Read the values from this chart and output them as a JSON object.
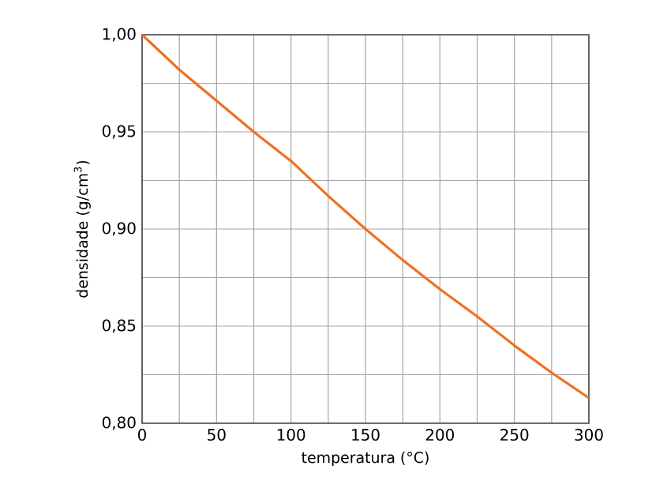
{
  "chart_data": {
    "type": "line",
    "xlabel": "temperatura (°C)",
    "ylabel": "densidade (g/cm$^{3}$)",
    "x": [
      0,
      25,
      50,
      75,
      100,
      125,
      150,
      175,
      200,
      225,
      250,
      275,
      300
    ],
    "series": [
      {
        "color": "#f07020",
        "values": [
          1.0,
          0.982,
          0.966,
          0.95,
          0.935,
          0.917,
          0.9,
          0.884,
          0.869,
          0.855,
          0.84,
          0.826,
          0.813
        ]
      }
    ],
    "xlim": [
      0,
      300
    ],
    "ylim": [
      0.8,
      1.0
    ],
    "xticks": [
      0,
      50,
      100,
      150,
      200,
      250,
      300
    ],
    "yticks": [
      {
        "value": 0.8,
        "label": "0,80"
      },
      {
        "value": 0.85,
        "label": "0,85"
      },
      {
        "value": 0.9,
        "label": "0,90"
      },
      {
        "value": 0.95,
        "label": "0,95"
      },
      {
        "value": 1.0,
        "label": "1,00"
      }
    ],
    "grid": true,
    "marker": "none",
    "line_style": "solid"
  }
}
